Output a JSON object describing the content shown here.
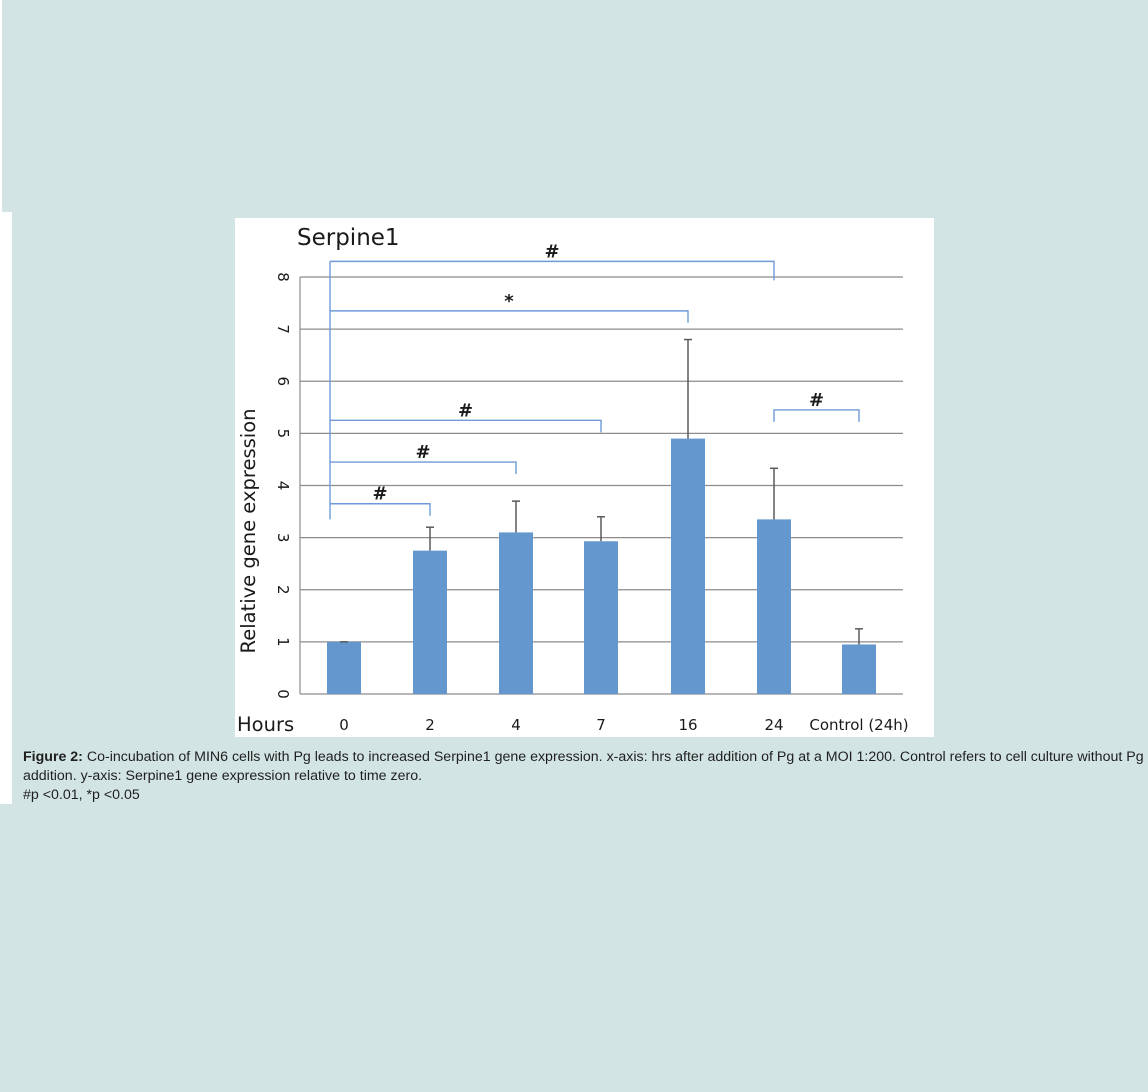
{
  "chart_data": {
    "type": "bar",
    "title": "Serpine1",
    "xlabel": "Hours",
    "ylabel": "Relative gene expression",
    "categories": [
      "0",
      "2",
      "4",
      "7",
      "16",
      "24",
      "Control (24h)"
    ],
    "values": [
      1.0,
      2.75,
      3.1,
      2.93,
      4.9,
      3.35,
      0.95
    ],
    "error_upper": [
      1.0,
      3.2,
      3.7,
      3.4,
      6.8,
      4.33,
      1.25
    ],
    "ylim": [
      0,
      8
    ],
    "yticks": [
      "0",
      "1",
      "2",
      "3",
      "4",
      "5",
      "6",
      "7",
      "8"
    ],
    "grid": true,
    "bar_color": "#6397cd",
    "bracket_color": "#6f9ad8",
    "brackets": [
      {
        "from": 0,
        "to": 5,
        "y": 8.3,
        "label": "#"
      },
      {
        "from": 0,
        "to": 4,
        "y": 7.35,
        "label": "*"
      },
      {
        "from": 0,
        "to": 3,
        "y": 5.25,
        "label": "#"
      },
      {
        "from": 0,
        "to": 2,
        "y": 4.45,
        "label": "#"
      },
      {
        "from": 0,
        "to": 1,
        "y": 3.65,
        "label": "#"
      },
      {
        "from": 5,
        "to": 6,
        "y": 5.45,
        "label": "#"
      }
    ]
  },
  "caption": {
    "label": "Figure 2:",
    "text": " Co-incubation of MIN6 cells with Pg leads to increased Serpine1 gene expression. x-axis: hrs after addition of Pg at a MOI 1:200. Control refers to cell culture without Pg addition. y-axis: Serpine1 gene expression relative to time zero.",
    "note": "#p <0.01, *p <0.05"
  }
}
